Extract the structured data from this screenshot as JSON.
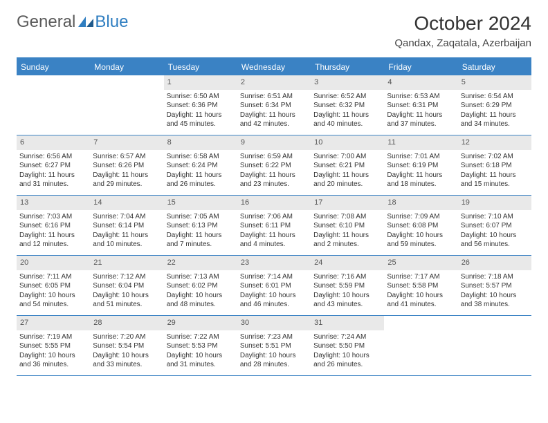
{
  "logo": {
    "text1": "General",
    "text2": "Blue"
  },
  "title": "October 2024",
  "location": "Qandax, Zaqatala, Azerbaijan",
  "header_bg": "#3a82c4",
  "border_color": "#3a82c4",
  "daynum_bg": "#e9e9e9",
  "weekdays": [
    "Sunday",
    "Monday",
    "Tuesday",
    "Wednesday",
    "Thursday",
    "Friday",
    "Saturday"
  ],
  "weeks": [
    [
      null,
      null,
      {
        "n": "1",
        "sr": "Sunrise: 6:50 AM",
        "ss": "Sunset: 6:36 PM",
        "d1": "Daylight: 11 hours",
        "d2": "and 45 minutes."
      },
      {
        "n": "2",
        "sr": "Sunrise: 6:51 AM",
        "ss": "Sunset: 6:34 PM",
        "d1": "Daylight: 11 hours",
        "d2": "and 42 minutes."
      },
      {
        "n": "3",
        "sr": "Sunrise: 6:52 AM",
        "ss": "Sunset: 6:32 PM",
        "d1": "Daylight: 11 hours",
        "d2": "and 40 minutes."
      },
      {
        "n": "4",
        "sr": "Sunrise: 6:53 AM",
        "ss": "Sunset: 6:31 PM",
        "d1": "Daylight: 11 hours",
        "d2": "and 37 minutes."
      },
      {
        "n": "5",
        "sr": "Sunrise: 6:54 AM",
        "ss": "Sunset: 6:29 PM",
        "d1": "Daylight: 11 hours",
        "d2": "and 34 minutes."
      }
    ],
    [
      {
        "n": "6",
        "sr": "Sunrise: 6:56 AM",
        "ss": "Sunset: 6:27 PM",
        "d1": "Daylight: 11 hours",
        "d2": "and 31 minutes."
      },
      {
        "n": "7",
        "sr": "Sunrise: 6:57 AM",
        "ss": "Sunset: 6:26 PM",
        "d1": "Daylight: 11 hours",
        "d2": "and 29 minutes."
      },
      {
        "n": "8",
        "sr": "Sunrise: 6:58 AM",
        "ss": "Sunset: 6:24 PM",
        "d1": "Daylight: 11 hours",
        "d2": "and 26 minutes."
      },
      {
        "n": "9",
        "sr": "Sunrise: 6:59 AM",
        "ss": "Sunset: 6:22 PM",
        "d1": "Daylight: 11 hours",
        "d2": "and 23 minutes."
      },
      {
        "n": "10",
        "sr": "Sunrise: 7:00 AM",
        "ss": "Sunset: 6:21 PM",
        "d1": "Daylight: 11 hours",
        "d2": "and 20 minutes."
      },
      {
        "n": "11",
        "sr": "Sunrise: 7:01 AM",
        "ss": "Sunset: 6:19 PM",
        "d1": "Daylight: 11 hours",
        "d2": "and 18 minutes."
      },
      {
        "n": "12",
        "sr": "Sunrise: 7:02 AM",
        "ss": "Sunset: 6:18 PM",
        "d1": "Daylight: 11 hours",
        "d2": "and 15 minutes."
      }
    ],
    [
      {
        "n": "13",
        "sr": "Sunrise: 7:03 AM",
        "ss": "Sunset: 6:16 PM",
        "d1": "Daylight: 11 hours",
        "d2": "and 12 minutes."
      },
      {
        "n": "14",
        "sr": "Sunrise: 7:04 AM",
        "ss": "Sunset: 6:14 PM",
        "d1": "Daylight: 11 hours",
        "d2": "and 10 minutes."
      },
      {
        "n": "15",
        "sr": "Sunrise: 7:05 AM",
        "ss": "Sunset: 6:13 PM",
        "d1": "Daylight: 11 hours",
        "d2": "and 7 minutes."
      },
      {
        "n": "16",
        "sr": "Sunrise: 7:06 AM",
        "ss": "Sunset: 6:11 PM",
        "d1": "Daylight: 11 hours",
        "d2": "and 4 minutes."
      },
      {
        "n": "17",
        "sr": "Sunrise: 7:08 AM",
        "ss": "Sunset: 6:10 PM",
        "d1": "Daylight: 11 hours",
        "d2": "and 2 minutes."
      },
      {
        "n": "18",
        "sr": "Sunrise: 7:09 AM",
        "ss": "Sunset: 6:08 PM",
        "d1": "Daylight: 10 hours",
        "d2": "and 59 minutes."
      },
      {
        "n": "19",
        "sr": "Sunrise: 7:10 AM",
        "ss": "Sunset: 6:07 PM",
        "d1": "Daylight: 10 hours",
        "d2": "and 56 minutes."
      }
    ],
    [
      {
        "n": "20",
        "sr": "Sunrise: 7:11 AM",
        "ss": "Sunset: 6:05 PM",
        "d1": "Daylight: 10 hours",
        "d2": "and 54 minutes."
      },
      {
        "n": "21",
        "sr": "Sunrise: 7:12 AM",
        "ss": "Sunset: 6:04 PM",
        "d1": "Daylight: 10 hours",
        "d2": "and 51 minutes."
      },
      {
        "n": "22",
        "sr": "Sunrise: 7:13 AM",
        "ss": "Sunset: 6:02 PM",
        "d1": "Daylight: 10 hours",
        "d2": "and 48 minutes."
      },
      {
        "n": "23",
        "sr": "Sunrise: 7:14 AM",
        "ss": "Sunset: 6:01 PM",
        "d1": "Daylight: 10 hours",
        "d2": "and 46 minutes."
      },
      {
        "n": "24",
        "sr": "Sunrise: 7:16 AM",
        "ss": "Sunset: 5:59 PM",
        "d1": "Daylight: 10 hours",
        "d2": "and 43 minutes."
      },
      {
        "n": "25",
        "sr": "Sunrise: 7:17 AM",
        "ss": "Sunset: 5:58 PM",
        "d1": "Daylight: 10 hours",
        "d2": "and 41 minutes."
      },
      {
        "n": "26",
        "sr": "Sunrise: 7:18 AM",
        "ss": "Sunset: 5:57 PM",
        "d1": "Daylight: 10 hours",
        "d2": "and 38 minutes."
      }
    ],
    [
      {
        "n": "27",
        "sr": "Sunrise: 7:19 AM",
        "ss": "Sunset: 5:55 PM",
        "d1": "Daylight: 10 hours",
        "d2": "and 36 minutes."
      },
      {
        "n": "28",
        "sr": "Sunrise: 7:20 AM",
        "ss": "Sunset: 5:54 PM",
        "d1": "Daylight: 10 hours",
        "d2": "and 33 minutes."
      },
      {
        "n": "29",
        "sr": "Sunrise: 7:22 AM",
        "ss": "Sunset: 5:53 PM",
        "d1": "Daylight: 10 hours",
        "d2": "and 31 minutes."
      },
      {
        "n": "30",
        "sr": "Sunrise: 7:23 AM",
        "ss": "Sunset: 5:51 PM",
        "d1": "Daylight: 10 hours",
        "d2": "and 28 minutes."
      },
      {
        "n": "31",
        "sr": "Sunrise: 7:24 AM",
        "ss": "Sunset: 5:50 PM",
        "d1": "Daylight: 10 hours",
        "d2": "and 26 minutes."
      },
      null,
      null
    ]
  ]
}
